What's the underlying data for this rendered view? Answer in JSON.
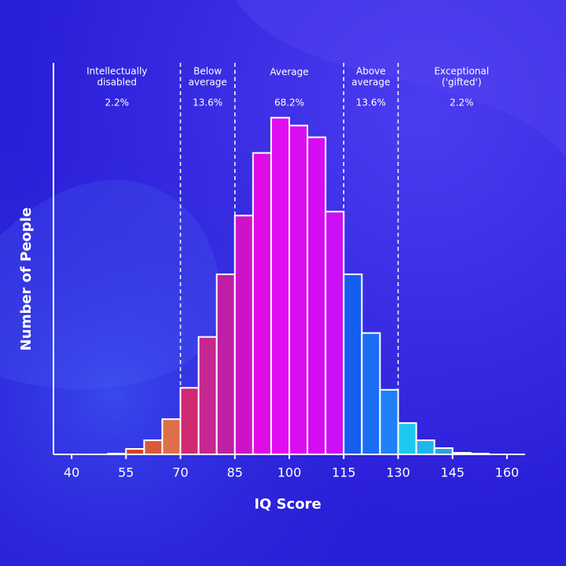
{
  "chart_data": {
    "type": "histogram",
    "x_label": "IQ Score",
    "y_label": "Number of People",
    "xlim": [
      35,
      165
    ],
    "xticks": [
      40,
      55,
      70,
      85,
      100,
      115,
      130,
      145,
      160
    ],
    "ylim": [
      0,
      100
    ],
    "bins": [
      50,
      55,
      60,
      65,
      70,
      75,
      80,
      85,
      90,
      95,
      100,
      105,
      110,
      115,
      120,
      125,
      130,
      135,
      140,
      145,
      150,
      155
    ],
    "values": [
      0.2,
      1.4,
      3.6,
      9,
      17,
      30,
      46,
      61,
      77,
      86,
      84,
      81,
      62,
      46,
      31,
      16.5,
      8,
      3.6,
      1.6,
      0.4,
      0.2
    ],
    "colors": [
      "#b8342c",
      "#cc4430",
      "#d85a38",
      "#dd7048",
      "#cf2a72",
      "#c72690",
      "#bf1ea6",
      "#cf12c6",
      "#df0ce6",
      "#e20cf0",
      "#dc0cf2",
      "#d60cf4",
      "#cc10f4",
      "#155ef0",
      "#1a6ef4",
      "#2080f8",
      "#1ec8f0",
      "#20b4f2",
      "#2aa0f0",
      "#3090ee",
      "#3888ec"
    ],
    "dividers": [
      70,
      85,
      115,
      130
    ],
    "regions": {
      "names": [
        [
          "Intellectually",
          "disabled"
        ],
        [
          "Below",
          "average"
        ],
        [
          "Average"
        ],
        [
          "Above",
          "average"
        ],
        [
          "Exceptional",
          "('gifted')"
        ]
      ],
      "values": [
        2.2,
        13.6,
        68.2,
        13.6,
        2.2
      ],
      "value_labels": [
        "2.2%",
        "13.6%",
        "68.2%",
        "13.6%",
        "2.2%"
      ]
    }
  }
}
